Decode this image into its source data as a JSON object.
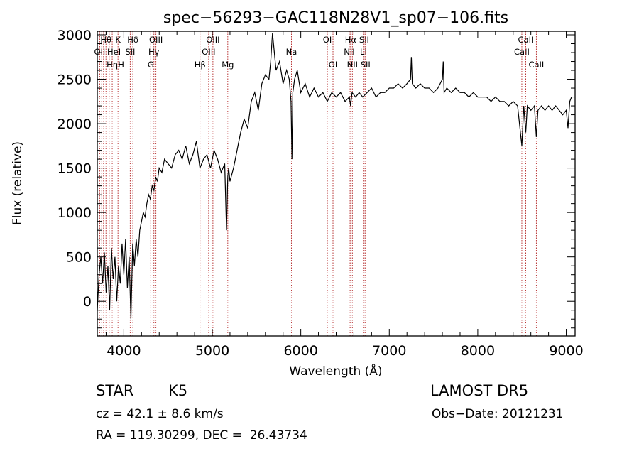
{
  "chart_data": {
    "type": "line",
    "title": "spec−56293−GAC118N28V1_sp07−106.fits",
    "xlabel": "Wavelength (Å)",
    "ylabel": "Flux (relative)",
    "xlim": [
      3700,
      9100
    ],
    "ylim": [
      -390,
      3040
    ],
    "xticks": [
      4000,
      5000,
      6000,
      7000,
      8000,
      9000
    ],
    "yticks": [
      0,
      500,
      1000,
      1500,
      2000,
      2500,
      3000
    ],
    "line_color": "#000000",
    "marker_color": "#b22222",
    "series": [
      {
        "x": [
          3700,
          3720,
          3740,
          3760,
          3780,
          3800,
          3820,
          3840,
          3860,
          3880,
          3900,
          3920,
          3940,
          3960,
          3980,
          4000,
          4020,
          4040,
          4060,
          4080,
          4100,
          4120,
          4140,
          4160,
          4180,
          4200,
          4220,
          4240,
          4260,
          4280,
          4300,
          4320,
          4340,
          4360,
          4380,
          4400,
          4430,
          4460,
          4500,
          4540,
          4580,
          4620,
          4660,
          4700,
          4740,
          4780,
          4820,
          4860,
          4900,
          4940,
          4980,
          5020,
          5060,
          5100,
          5140,
          5160,
          5175,
          5185,
          5200,
          5240,
          5280,
          5320,
          5360,
          5400,
          5440,
          5480,
          5520,
          5560,
          5600,
          5640,
          5660,
          5680,
          5720,
          5760,
          5800,
          5840,
          5870,
          5890,
          5900,
          5910,
          5930,
          5960,
          6000,
          6050,
          6100,
          6150,
          6200,
          6250,
          6300,
          6350,
          6400,
          6450,
          6500,
          6550,
          6563,
          6580,
          6620,
          6660,
          6700,
          6750,
          6800,
          6850,
          6900,
          6950,
          7000,
          7050,
          7100,
          7150,
          7200,
          7240,
          7250,
          7260,
          7300,
          7350,
          7400,
          7450,
          7500,
          7550,
          7600,
          7610,
          7620,
          7650,
          7700,
          7750,
          7800,
          7850,
          7900,
          7950,
          8000,
          8050,
          8100,
          8150,
          8200,
          8250,
          8300,
          8350,
          8400,
          8450,
          8498,
          8520,
          8542,
          8560,
          8600,
          8640,
          8662,
          8680,
          8720,
          8760,
          8800,
          8840,
          8880,
          8920,
          8960,
          9000,
          9020,
          9040,
          9060
        ],
        "y": [
          -100,
          300,
          500,
          200,
          550,
          100,
          400,
          -100,
          600,
          250,
          500,
          0,
          400,
          200,
          650,
          300,
          700,
          150,
          500,
          -200,
          650,
          400,
          700,
          500,
          800,
          900,
          1000,
          950,
          1100,
          1200,
          1150,
          1300,
          1250,
          1400,
          1350,
          1500,
          1450,
          1600,
          1550,
          1500,
          1650,
          1700,
          1600,
          1750,
          1550,
          1650,
          1800,
          1500,
          1600,
          1650,
          1500,
          1700,
          1600,
          1450,
          1550,
          800,
          1400,
          1500,
          1350,
          1500,
          1700,
          1900,
          2050,
          1950,
          2250,
          2350,
          2150,
          2450,
          2550,
          2500,
          2700,
          3020,
          2600,
          2700,
          2450,
          2600,
          2500,
          2250,
          1600,
          2350,
          2500,
          2600,
          2350,
          2450,
          2300,
          2400,
          2300,
          2350,
          2250,
          2350,
          2300,
          2350,
          2250,
          2300,
          2200,
          2350,
          2300,
          2350,
          2300,
          2350,
          2400,
          2300,
          2350,
          2350,
          2400,
          2400,
          2450,
          2400,
          2450,
          2500,
          2750,
          2450,
          2400,
          2450,
          2400,
          2400,
          2350,
          2400,
          2500,
          2700,
          2350,
          2400,
          2350,
          2400,
          2350,
          2350,
          2300,
          2350,
          2300,
          2300,
          2300,
          2250,
          2300,
          2250,
          2250,
          2200,
          2250,
          2200,
          1750,
          2200,
          1900,
          2200,
          2150,
          2200,
          1850,
          2150,
          2200,
          2150,
          2200,
          2150,
          2200,
          2150,
          2100,
          2150,
          1950,
          2250,
          2300
        ]
      }
    ],
    "lines": [
      {
        "lambda": 3727,
        "label": "OII",
        "row": 2
      },
      {
        "lambda": 3750,
        "label": "",
        "row": 0
      },
      {
        "lambda": 3771,
        "label": "",
        "row": 0
      },
      {
        "lambda": 3798,
        "label": "Hθ",
        "row": 1
      },
      {
        "lambda": 3835,
        "label": "",
        "row": 0
      },
      {
        "lambda": 3869,
        "label": "Hη",
        "row": 3
      },
      {
        "lambda": 3889,
        "label": "HeI",
        "row": 2
      },
      {
        "lambda": 3934,
        "label": "K",
        "row": 1
      },
      {
        "lambda": 3969,
        "label": "H",
        "row": 3
      },
      {
        "lambda": 4072,
        "label": "SII",
        "row": 2
      },
      {
        "lambda": 4102,
        "label": "Hδ",
        "row": 1
      },
      {
        "lambda": 4304,
        "label": "G",
        "row": 3
      },
      {
        "lambda": 4340,
        "label": "Hγ",
        "row": 2
      },
      {
        "lambda": 4363,
        "label": "OIII",
        "row": 1
      },
      {
        "lambda": 4861,
        "label": "Hβ",
        "row": 3
      },
      {
        "lambda": 4959,
        "label": "OIII",
        "row": 2
      },
      {
        "lambda": 5007,
        "label": "OIII",
        "row": 1
      },
      {
        "lambda": 5175,
        "label": "Mg",
        "row": 3
      },
      {
        "lambda": 5894,
        "label": "Na",
        "row": 2
      },
      {
        "lambda": 6300,
        "label": "OI",
        "row": 1
      },
      {
        "lambda": 6364,
        "label": "OI",
        "row": 3
      },
      {
        "lambda": 6548,
        "label": "NII",
        "row": 2
      },
      {
        "lambda": 6563,
        "label": "Hα",
        "row": 1
      },
      {
        "lambda": 6583,
        "label": "NII",
        "row": 3
      },
      {
        "lambda": 6707,
        "label": "Li",
        "row": 2
      },
      {
        "lambda": 6716,
        "label": "SII",
        "row": 1
      },
      {
        "lambda": 6731,
        "label": "SII",
        "row": 3
      },
      {
        "lambda": 8498,
        "label": "CaII",
        "row": 2
      },
      {
        "lambda": 8542,
        "label": "CaII",
        "row": 1
      },
      {
        "lambda": 8662,
        "label": "CaII",
        "row": 3
      }
    ]
  },
  "info": {
    "object_class": "STAR",
    "subclass": "K5",
    "survey": "LAMOST DR5",
    "redshift": "cz = 42.1 ± 8.6 km/s",
    "obs_date": "Obs−Date: 20121231",
    "coords": "RA = 119.30299, DEC =  26.43734"
  }
}
